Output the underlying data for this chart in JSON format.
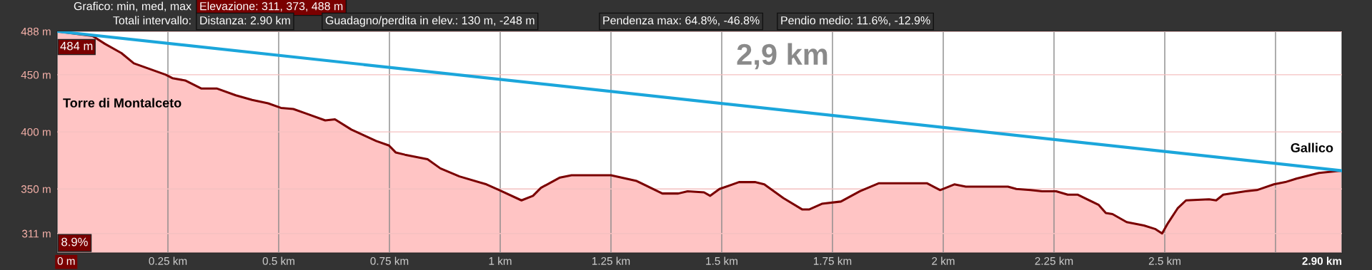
{
  "chart_data": {
    "type": "area",
    "xlim": [
      0,
      2.9
    ],
    "ylim": [
      294,
      488
    ],
    "xticks": [
      {
        "value": 0,
        "label": "0 m"
      },
      {
        "value": 0.25,
        "label": "0.25 km"
      },
      {
        "value": 0.5,
        "label": "0.5 km"
      },
      {
        "value": 0.75,
        "label": "0.75 km"
      },
      {
        "value": 1,
        "label": "1 km"
      },
      {
        "value": 1.25,
        "label": "1.25 km"
      },
      {
        "value": 1.5,
        "label": "1.5 km"
      },
      {
        "value": 1.75,
        "label": "1.75 km"
      },
      {
        "value": 2,
        "label": "2 km"
      },
      {
        "value": 2.25,
        "label": "2.25 km"
      },
      {
        "value": 2.5,
        "label": "2.5 km"
      },
      {
        "value": 2.75,
        "label": null
      },
      {
        "value": 2.9,
        "label": "2.90 km"
      }
    ],
    "yticks": [
      {
        "value": 311,
        "label": "311 m"
      },
      {
        "value": 350,
        "label": "350 m"
      },
      {
        "value": 400,
        "label": "400 m"
      },
      {
        "value": 450,
        "label": "450 m"
      },
      {
        "value": 488,
        "label": "488 m"
      }
    ],
    "grid": true,
    "legend": false,
    "series": [
      {
        "color": "#7a0000",
        "x": [
          0,
          0.08,
          0.108,
          0.145,
          0.173,
          0.209,
          0.245,
          0.26,
          0.289,
          0.325,
          0.36,
          0.403,
          0.44,
          0.476,
          0.505,
          0.533,
          0.562,
          0.605,
          0.627,
          0.664,
          0.692,
          0.72,
          0.749,
          0.764,
          0.785,
          0.836,
          0.865,
          0.908,
          0.969,
          0.998,
          1.048,
          1.074,
          1.092,
          1.135,
          1.161,
          1.25,
          1.308,
          1.366,
          1.402,
          1.423,
          1.46,
          1.474,
          1.495,
          1.539,
          1.575,
          1.596,
          1.639,
          1.682,
          1.697,
          1.726,
          1.769,
          1.812,
          1.855,
          1.963,
          1.993,
          2.025,
          2.051,
          2.146,
          2.165,
          2.197,
          2.223,
          2.255,
          2.281,
          2.303,
          2.351,
          2.367,
          2.382,
          2.414,
          2.453,
          2.478,
          2.494,
          2.507,
          2.529,
          2.548,
          2.6,
          2.616,
          2.632,
          2.682,
          2.708,
          2.746,
          2.772,
          2.797,
          2.848,
          2.9
        ],
        "values": [
          488,
          484,
          477,
          469,
          460,
          455,
          450,
          447,
          445,
          438,
          438,
          432,
          428,
          425,
          421,
          420,
          416,
          410,
          411,
          402,
          397,
          392,
          388,
          382,
          380,
          376,
          368,
          361,
          354,
          349,
          340,
          344,
          351,
          360,
          362,
          362,
          357,
          346,
          346,
          348,
          347,
          344,
          350,
          356,
          356,
          354,
          342,
          332,
          332,
          337,
          339,
          348,
          355,
          355,
          349,
          354,
          352,
          352,
          350,
          349,
          348,
          348,
          345,
          345,
          336,
          329,
          328,
          321,
          318,
          315,
          311,
          320,
          333,
          340,
          341,
          340,
          345,
          348,
          349,
          354,
          356,
          359,
          364,
          366
        ]
      },
      {
        "type": "line",
        "color": "#1ba6db",
        "x": [
          0,
          2.9
        ],
        "values": [
          488,
          366
        ]
      }
    ],
    "annotations": [
      "Grafico: min, med, max",
      "Elevazione: 311, 373, 488 m",
      "Totali intervallo:",
      "Distanza: 2.90 km",
      "Guadagno/perdita in elev.: 130 m, -248 m",
      "Pendenza max: 64.8%, -46.8%",
      "Pendio medio: 11.6%, -12.9%",
      "2,9 km",
      "8.9%",
      "484 m",
      "Torre di Montalceto",
      "Gallico"
    ]
  }
}
